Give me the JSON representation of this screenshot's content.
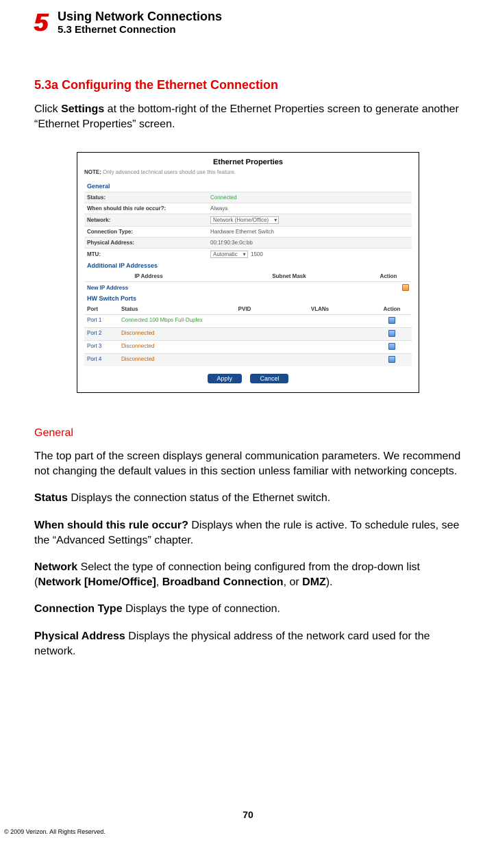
{
  "header": {
    "chapter_num": "5",
    "chapter_title": "Using Network Connections",
    "section_label": "5.3  Ethernet Connection"
  },
  "section": {
    "heading": "5.3a  Configuring the Ethernet Connection",
    "intro_pre": "Click ",
    "intro_bold": "Settings",
    "intro_post": " at the bottom-right of the Ethernet Properties screen to generate another “Ethernet Properties” screen."
  },
  "screenshot": {
    "title": "Ethernet Properties",
    "note_label": "NOTE:",
    "note_text": " Only advanced technical users should use this feature.",
    "general_label": "General",
    "rows": {
      "status_label": "Status:",
      "status_value": "Connected",
      "rule_label": "When should this rule occur?:",
      "rule_value": "Always",
      "network_label": "Network:",
      "network_value": "Network (Home/Office)",
      "conn_type_label": "Connection Type:",
      "conn_type_value": "Hardware Ethernet Switch",
      "phys_label": "Physical Address:",
      "phys_value": "00:1f:90:3e:0c:bb",
      "mtu_label": "MTU:",
      "mtu_select": "Automatic",
      "mtu_value": "1500"
    },
    "addl_ip_label": "Additional IP Addresses",
    "ip_cols": {
      "c1": "IP Address",
      "c2": "Subnet Mask",
      "c3": "Action"
    },
    "new_ip": "New IP Address",
    "hw_label": "HW Switch Ports",
    "port_cols": {
      "p1": "Port",
      "p2": "Status",
      "p3": "PVID",
      "p4": "VLANs",
      "p5": "Action"
    },
    "ports": [
      {
        "name": "Port 1",
        "status": "Connected 100 Mbps Full-Duplex",
        "green": true
      },
      {
        "name": "Port 2",
        "status": "Disconnected",
        "green": false
      },
      {
        "name": "Port 3",
        "status": "Disconnected",
        "green": false
      },
      {
        "name": "Port 4",
        "status": "Disconnected",
        "green": false
      }
    ],
    "btn_apply": "Apply",
    "btn_cancel": "Cancel"
  },
  "body": {
    "general_heading": "General",
    "general_para": "The top part of the screen displays general communication parameters. We recommend not changing the default values in this section unless familiar with networking concepts.",
    "status_b": "Status",
    "status_t": "  Displays the connection status of the Ethernet switch.",
    "rule_b": "When should this rule occur?",
    "rule_t": "  Displays when the rule is active. To schedule rules, see the “Advanced Settings” chapter.",
    "net_b": "Network",
    "net_t1": "  Select the type of connection being configured from the drop-down list (",
    "net_b2": "Network [Home/Office]",
    "net_t2": ", ",
    "net_b3": "Broadband Connection",
    "net_t3": ", or ",
    "net_b4": "DMZ",
    "net_t4": ").",
    "ct_b": "Connection Type",
    "ct_t": "  Displays the type of connection.",
    "pa_b": "Physical Address",
    "pa_t": "  Displays the physical address of the network card used for the network."
  },
  "page_num": "70",
  "copyright": "© 2009 Verizon. All Rights Reserved."
}
